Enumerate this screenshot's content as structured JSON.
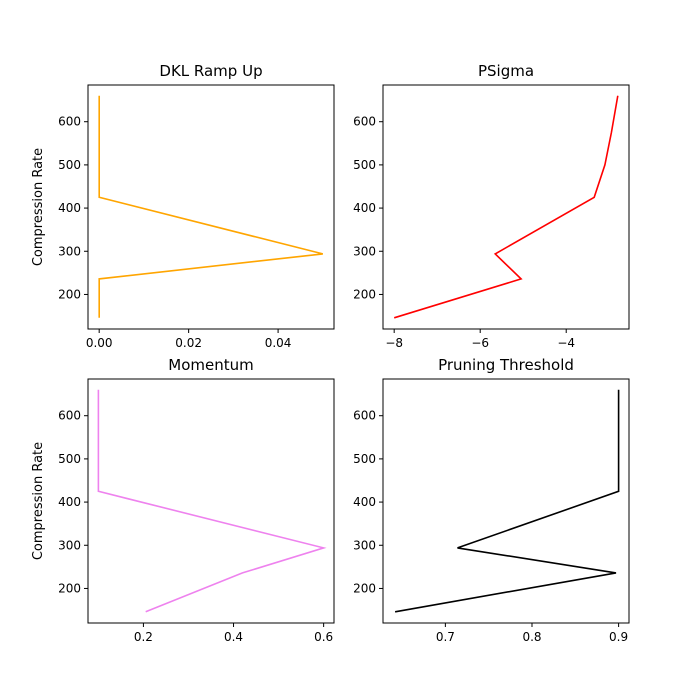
{
  "chart_data": [
    {
      "type": "line",
      "title": "DKL Ramp Up",
      "xlabel": "",
      "ylabel": "Compression Rate",
      "color": "#ffa500",
      "xlim": [
        -0.0025,
        0.0525
      ],
      "ylim": [
        120,
        685
      ],
      "xticks": [
        {
          "value": 0,
          "label": "0.00"
        },
        {
          "value": 0.02,
          "label": "0.02"
        },
        {
          "value": 0.04,
          "label": "0.04"
        }
      ],
      "yticks": [
        {
          "value": 200,
          "label": "200"
        },
        {
          "value": 300,
          "label": "300"
        },
        {
          "value": 400,
          "label": "400"
        },
        {
          "value": 500,
          "label": "500"
        },
        {
          "value": 600,
          "label": "600"
        }
      ],
      "x": [
        0,
        0,
        0.05,
        0,
        0
      ],
      "y": [
        660,
        425,
        294,
        236,
        146
      ]
    },
    {
      "type": "line",
      "title": "PSigma",
      "xlabel": "",
      "ylabel": "",
      "color": "#ff0000",
      "xlim": [
        -8.26,
        -2.54
      ],
      "ylim": [
        120,
        685
      ],
      "xticks": [
        {
          "value": -8,
          "label": "−8"
        },
        {
          "value": -6,
          "label": "−6"
        },
        {
          "value": -4,
          "label": "−4"
        }
      ],
      "yticks": [
        {
          "value": 200,
          "label": "200"
        },
        {
          "value": 300,
          "label": "300"
        },
        {
          "value": 400,
          "label": "400"
        },
        {
          "value": 500,
          "label": "500"
        },
        {
          "value": 600,
          "label": "600"
        }
      ],
      "x": [
        -2.8,
        -2.95,
        -3.1,
        -3.35,
        -5.65,
        -5.05,
        -8.0
      ],
      "y": [
        660,
        575,
        500,
        425,
        294,
        236,
        146
      ]
    },
    {
      "type": "line",
      "title": "Momentum",
      "xlabel": "",
      "ylabel": "Compression Rate",
      "color": "#ee82ee",
      "xlim": [
        0.077,
        0.623
      ],
      "ylim": [
        120,
        685
      ],
      "xticks": [
        {
          "value": 0.2,
          "label": "0.2"
        },
        {
          "value": 0.4,
          "label": "0.4"
        },
        {
          "value": 0.6,
          "label": "0.6"
        }
      ],
      "yticks": [
        {
          "value": 200,
          "label": "200"
        },
        {
          "value": 300,
          "label": "300"
        },
        {
          "value": 400,
          "label": "400"
        },
        {
          "value": 500,
          "label": "500"
        },
        {
          "value": 600,
          "label": "600"
        }
      ],
      "x": [
        0.1,
        0.1,
        0.6,
        0.42,
        0.205
      ],
      "y": [
        660,
        425,
        294,
        236,
        146
      ]
    },
    {
      "type": "line",
      "title": "Pruning Threshold",
      "xlabel": "",
      "ylabel": "",
      "color": "#000000",
      "xlim": [
        0.628,
        0.912
      ],
      "ylim": [
        120,
        685
      ],
      "xticks": [
        {
          "value": 0.7,
          "label": "0.7"
        },
        {
          "value": 0.8,
          "label": "0.8"
        },
        {
          "value": 0.9,
          "label": "0.9"
        }
      ],
      "yticks": [
        {
          "value": 200,
          "label": "200"
        },
        {
          "value": 300,
          "label": "300"
        },
        {
          "value": 400,
          "label": "400"
        },
        {
          "value": 500,
          "label": "500"
        },
        {
          "value": 600,
          "label": "600"
        }
      ],
      "x": [
        0.9,
        0.9,
        0.714,
        0.897,
        0.642
      ],
      "y": [
        660,
        425,
        294,
        236,
        146
      ]
    }
  ]
}
